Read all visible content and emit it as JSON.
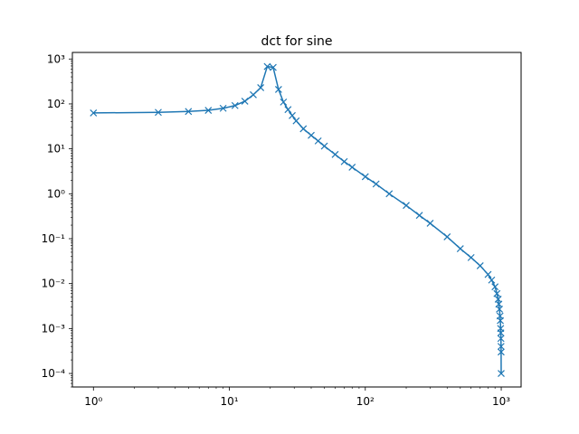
{
  "chart_data": {
    "type": "line",
    "title": "dct for sine",
    "xlabel": "",
    "ylabel": "",
    "x_scale": "log",
    "y_scale": "log",
    "xlim": [
      0.7,
      1400
    ],
    "ylim": [
      5e-05,
      1400
    ],
    "grid": false,
    "legend": "none",
    "line_color": "#1f77b4",
    "marker": "x",
    "x_ticks": [
      {
        "value": 1,
        "label": "10⁰"
      },
      {
        "value": 10,
        "label": "10¹"
      },
      {
        "value": 100,
        "label": "10²"
      },
      {
        "value": 1000,
        "label": "10³"
      }
    ],
    "y_ticks": [
      {
        "value": 0.0001,
        "label": "10⁻⁴"
      },
      {
        "value": 0.001,
        "label": "10⁻³"
      },
      {
        "value": 0.01,
        "label": "10⁻²"
      },
      {
        "value": 0.1,
        "label": "10⁻¹"
      },
      {
        "value": 1,
        "label": "10⁰"
      },
      {
        "value": 10,
        "label": "10¹"
      },
      {
        "value": 100,
        "label": "10²"
      },
      {
        "value": 1000,
        "label": "10³"
      }
    ],
    "series": [
      {
        "x": [
          1,
          3,
          5,
          7,
          9,
          11,
          13,
          15,
          17,
          19,
          21,
          23,
          25,
          27,
          29,
          31,
          35,
          40,
          45,
          50,
          60,
          70,
          80,
          100,
          120,
          150,
          200,
          250,
          300,
          400,
          500,
          600,
          700,
          800,
          850,
          900,
          930,
          950,
          960,
          970,
          980,
          985,
          990,
          993,
          995,
          997,
          998,
          999
        ],
        "y": [
          63,
          65,
          68,
          72,
          80,
          92,
          115,
          160,
          230,
          680,
          650,
          210,
          110,
          75,
          55,
          42,
          28,
          20,
          15,
          11.5,
          7.5,
          5.2,
          3.9,
          2.4,
          1.65,
          1.0,
          0.55,
          0.33,
          0.22,
          0.11,
          0.06,
          0.038,
          0.025,
          0.016,
          0.012,
          0.0085,
          0.006,
          0.0045,
          0.0035,
          0.0027,
          0.0019,
          0.0015,
          0.001,
          0.0008,
          0.0006,
          0.0004,
          0.0003,
          0.0001
        ]
      }
    ]
  }
}
